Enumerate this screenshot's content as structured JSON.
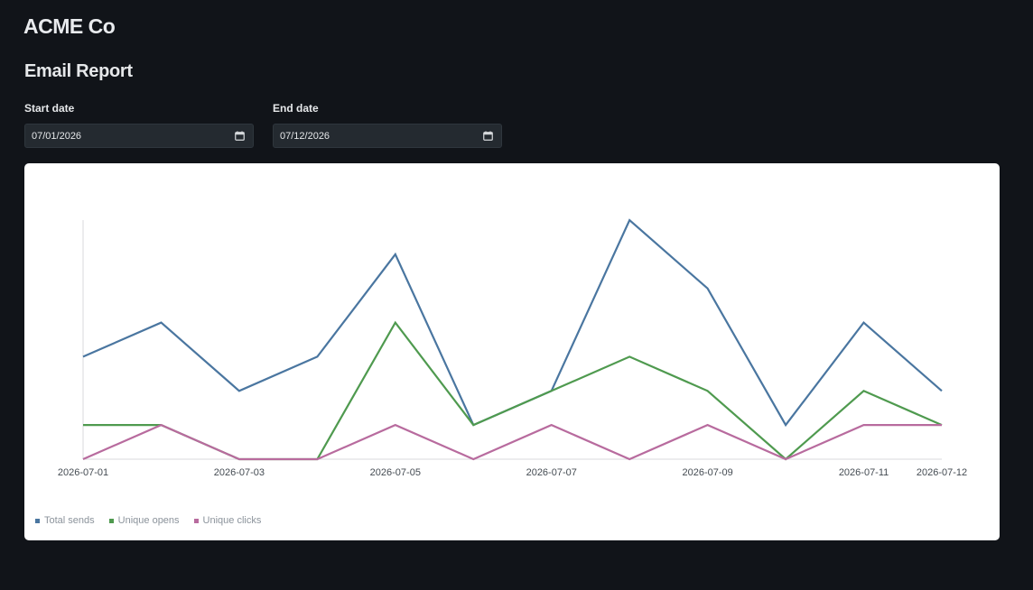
{
  "header": {
    "brand": "ACME Co"
  },
  "page": {
    "title": "Email Report"
  },
  "filters": {
    "start": {
      "label": "Start date",
      "value": "07/01/2026"
    },
    "end": {
      "label": "End date",
      "value": "07/12/2026"
    }
  },
  "colors": {
    "total_sends": "#4a76a0",
    "unique_opens": "#4f9a4f",
    "unique_clicks": "#b86b9e"
  },
  "chart_data": {
    "type": "line",
    "x": [
      "2026-07-01",
      "2026-07-02",
      "2026-07-03",
      "2026-07-04",
      "2026-07-05",
      "2026-07-06",
      "2026-07-07",
      "2026-07-08",
      "2026-07-09",
      "2026-07-10",
      "2026-07-11",
      "2026-07-12"
    ],
    "tick_labels": [
      "2026-07-01",
      "2026-07-03",
      "2026-07-05",
      "2026-07-07",
      "2026-07-09",
      "2026-07-11",
      "2026-07-12"
    ],
    "series": [
      {
        "name": "Total sends",
        "values": [
          3,
          4,
          2,
          3,
          6,
          1,
          2,
          7,
          5,
          1,
          4,
          2
        ]
      },
      {
        "name": "Unique opens",
        "values": [
          1,
          1,
          0,
          0,
          4,
          1,
          2,
          3,
          2,
          0,
          2,
          1
        ]
      },
      {
        "name": "Unique clicks",
        "values": [
          0,
          1,
          0,
          0,
          1,
          0,
          1,
          0,
          1,
          0,
          1,
          1
        ]
      }
    ],
    "ylim": [
      0,
      7
    ],
    "legend_position": "bottom-left",
    "grid": false
  }
}
